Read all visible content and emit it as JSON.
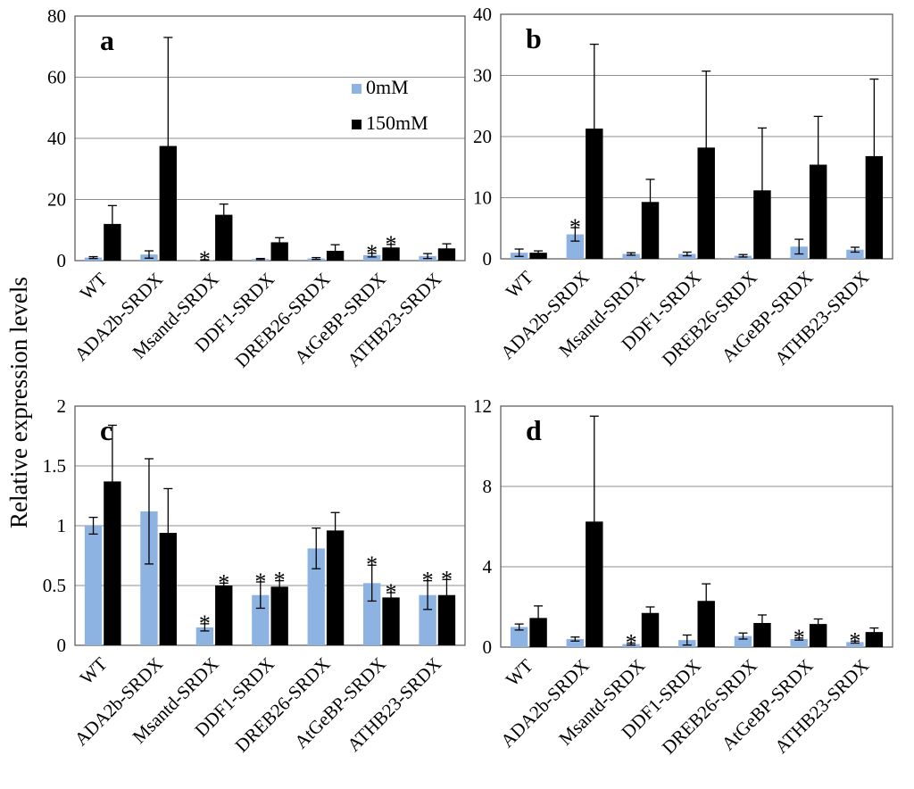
{
  "figure": {
    "ylabel": "Relative expression levels",
    "legend": {
      "entries": [
        "0mM",
        "150mM"
      ],
      "colors": [
        "#8db3e2",
        "#000000"
      ]
    }
  },
  "chart_data": [
    {
      "type": "bar",
      "panel": "a",
      "categories": [
        "WT",
        "ADA2b-SRDX",
        "Msantd-SRDX",
        "DDF1-SRDX",
        "DREB26-SRDX",
        "AtGeBP-SRDX",
        "ATHB23-SRDX"
      ],
      "series": [
        {
          "name": "0mM",
          "values": [
            1,
            2,
            0.2,
            0.5,
            0.7,
            1.8,
            1.5
          ],
          "errors": [
            0.3,
            1.2,
            0.1,
            0.2,
            0.3,
            0.6,
            0.8
          ]
        },
        {
          "name": "150mM",
          "values": [
            12,
            37.5,
            15,
            6,
            3.2,
            4.3,
            4.0
          ],
          "errors": [
            6,
            35.5,
            3.5,
            1.5,
            2,
            1,
            1.5
          ]
        }
      ],
      "ylim": [
        0,
        80
      ],
      "yticks": [
        "0",
        "20",
        "40",
        "60",
        "80"
      ],
      "stars": [
        {
          "category": 2,
          "series": 0,
          "text": "*"
        },
        {
          "category": 5,
          "series": 0,
          "text": "*"
        },
        {
          "category": 5,
          "series": 1,
          "text": "*"
        }
      ],
      "legend": "top-center"
    },
    {
      "type": "bar",
      "panel": "b",
      "categories": [
        "WT",
        "ADA2b-SRDX",
        "Msantd-SRDX",
        "DDF1-SRDX",
        "DREB26-SRDX",
        "AtGeBP-SRDX",
        "ATHB23-SRDX"
      ],
      "series": [
        {
          "name": "0mM",
          "values": [
            1,
            4,
            0.8,
            0.8,
            0.5,
            2,
            1.5
          ],
          "errors": [
            0.6,
            1.1,
            0.2,
            0.3,
            0.2,
            1.2,
            0.4
          ]
        },
        {
          "name": "150mM",
          "values": [
            1,
            21.3,
            9.3,
            18.2,
            11.2,
            15.4,
            16.8
          ],
          "errors": [
            0.3,
            13.8,
            3.7,
            12.5,
            10.2,
            7.9,
            12.6
          ]
        }
      ],
      "ylim": [
        0,
        40
      ],
      "yticks": [
        "0",
        "10",
        "20",
        "30",
        "40"
      ],
      "stars": [
        {
          "category": 1,
          "series": 0,
          "text": "*"
        }
      ]
    },
    {
      "type": "bar",
      "panel": "c",
      "categories": [
        "WT",
        "ADA2b-SRDX",
        "Msantd-SRDX",
        "DDF1-SRDX",
        "DREB26-SRDX",
        "AtGeBP-SRDX",
        "ATHB23-SRDX"
      ],
      "series": [
        {
          "name": "0mM",
          "values": [
            1.0,
            1.12,
            0.15,
            0.42,
            0.81,
            0.52,
            0.42
          ],
          "errors": [
            0.07,
            0.44,
            0.03,
            0.11,
            0.17,
            0.15,
            0.12
          ]
        },
        {
          "name": "150mM",
          "values": [
            1.37,
            0.94,
            0.5,
            0.49,
            0.96,
            0.4,
            0.42
          ],
          "errors": [
            0.47,
            0.37,
            0.02,
            0.05,
            0.15,
            0.04,
            0.13
          ]
        }
      ],
      "ylim": [
        0,
        2
      ],
      "yticks": [
        "0",
        "0.5",
        "1",
        "1.5",
        "2"
      ],
      "stars": [
        {
          "category": 2,
          "series": 0,
          "text": "*"
        },
        {
          "category": 2,
          "series": 1,
          "text": "*"
        },
        {
          "category": 3,
          "series": 0,
          "text": "*"
        },
        {
          "category": 3,
          "series": 1,
          "text": "*"
        },
        {
          "category": 5,
          "series": 0,
          "text": "*"
        },
        {
          "category": 5,
          "series": 1,
          "text": "*"
        },
        {
          "category": 6,
          "series": 0,
          "text": "*"
        },
        {
          "category": 6,
          "series": 1,
          "text": "*"
        }
      ]
    },
    {
      "type": "bar",
      "panel": "d",
      "categories": [
        "WT",
        "ADA2b-SRDX",
        "Msantd-SRDX",
        "DDF1-SRDX",
        "DREB26-SRDX",
        "AtGeBP-SRDX",
        "ATHB23-SRDX"
      ],
      "series": [
        {
          "name": "0mM",
          "values": [
            1.0,
            0.4,
            0.15,
            0.35,
            0.55,
            0.4,
            0.25
          ],
          "errors": [
            0.15,
            0.1,
            0.05,
            0.25,
            0.15,
            0.05,
            0.05
          ]
        },
        {
          "name": "150mM",
          "values": [
            1.45,
            6.25,
            1.7,
            2.3,
            1.2,
            1.15,
            0.75
          ],
          "errors": [
            0.6,
            5.25,
            0.3,
            0.85,
            0.4,
            0.25,
            0.2
          ]
        }
      ],
      "ylim": [
        0,
        12
      ],
      "yticks": [
        "0",
        "4",
        "8",
        "12"
      ],
      "stars": [
        {
          "category": 2,
          "series": 0,
          "text": "*"
        },
        {
          "category": 5,
          "series": 0,
          "text": "*"
        },
        {
          "category": 6,
          "series": 0,
          "text": "*"
        }
      ]
    }
  ]
}
